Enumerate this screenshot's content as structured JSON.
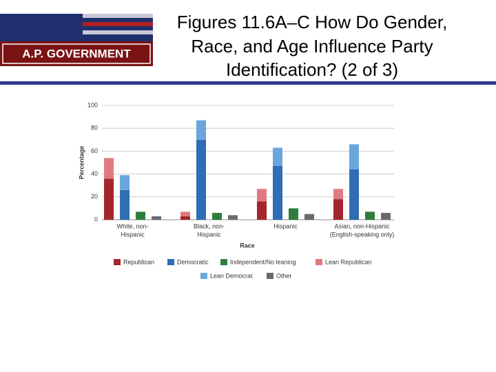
{
  "header": {
    "logo_text": "A.P. GOVERNMENT",
    "title": [
      "Figures 11.6A–C How Do Gender,",
      "Race, and Age Influence Party",
      "Identification? (2 of 3)"
    ]
  },
  "chart_data": {
    "type": "bar",
    "categories": [
      [
        "White, non-",
        "Hispanic"
      ],
      [
        "Black, non-",
        "Hispanic"
      ],
      [
        "Hispanic"
      ],
      [
        "Asian, non-Hispanic",
        "(English-speaking only)"
      ]
    ],
    "x_label": "Race",
    "y_label": "Percentage",
    "ylim": [
      0,
      100
    ],
    "yticks": [
      0,
      20,
      40,
      60,
      80,
      100
    ],
    "grid": true,
    "legend": "bottom",
    "series": [
      {
        "name": "Republican",
        "color": "#a3262a",
        "slot": 0,
        "values": [
          36,
          3,
          16,
          18
        ]
      },
      {
        "name": "Democratic",
        "color": "#2f6db5",
        "slot": 1,
        "values": [
          26,
          70,
          47,
          44
        ]
      },
      {
        "name": "Independent/No leaning",
        "color": "#2e7d3c",
        "slot": 2,
        "values": [
          7,
          6,
          10,
          7
        ]
      },
      {
        "name": "Lean Republican",
        "color": "#e07a82",
        "slot": 0,
        "values": [
          18,
          4,
          11,
          9
        ]
      },
      {
        "name": "Lean Democrat",
        "color": "#6aa6dc",
        "slot": 1,
        "values": [
          13,
          17,
          16,
          22
        ]
      },
      {
        "name": "Other",
        "color": "#6b6b6b",
        "slot": 3,
        "values": [
          3,
          4,
          5,
          6
        ]
      }
    ]
  }
}
